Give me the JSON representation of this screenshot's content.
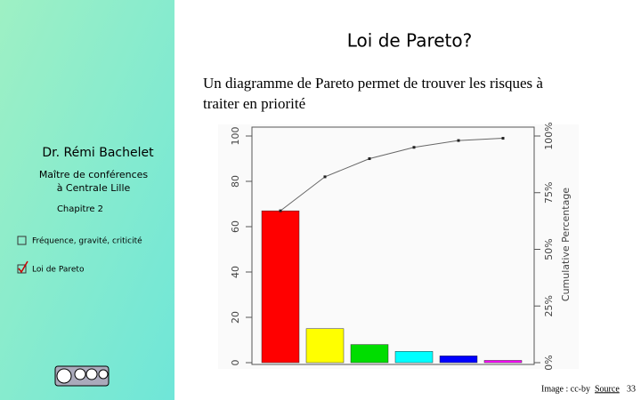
{
  "slide": {
    "title": "Loi de Pareto?",
    "subtitle_lines": [
      "Un diagramme de Pareto permet de trouver les risques à",
      "traiter en priorité"
    ],
    "author": "Dr. Rémi Bachelet",
    "role_lines": [
      "Maître de conférences",
      "à Centrale Lille"
    ],
    "chapter": "Chapitre 2",
    "menu": [
      "Fréquence, gravité, criticité",
      "Loi de Pareto"
    ],
    "footer": {
      "credit": "Image : cc-by",
      "link": "Source",
      "page": "33"
    }
  },
  "chart_data": {
    "type": "pareto",
    "y2_label": "Cumulative Percentage",
    "categories": [
      null,
      null,
      null,
      null,
      null,
      null
    ],
    "series": [
      {
        "colors": [
          "#ff0000",
          "#ffff00",
          "#00dd00",
          "#00ffff",
          "#0000ff",
          "#ff00ff"
        ],
        "values": [
          67,
          15,
          8,
          5,
          3,
          1
        ]
      },
      {
        "axis": "y2",
        "color": "#666666",
        "values": [
          67,
          82,
          90,
          95,
          98,
          99
        ]
      }
    ],
    "ylim": [
      0,
      100
    ],
    "yticks": [
      0,
      20,
      40,
      60,
      80,
      100
    ],
    "y2lim": [
      0,
      100
    ],
    "y2ticks": [
      {
        "value": 0,
        "label": "0%"
      },
      {
        "value": 25,
        "label": "25%"
      },
      {
        "value": 50,
        "label": "50%"
      },
      {
        "value": 75,
        "label": "75%"
      },
      {
        "value": 100,
        "label": "100%"
      }
    ]
  }
}
